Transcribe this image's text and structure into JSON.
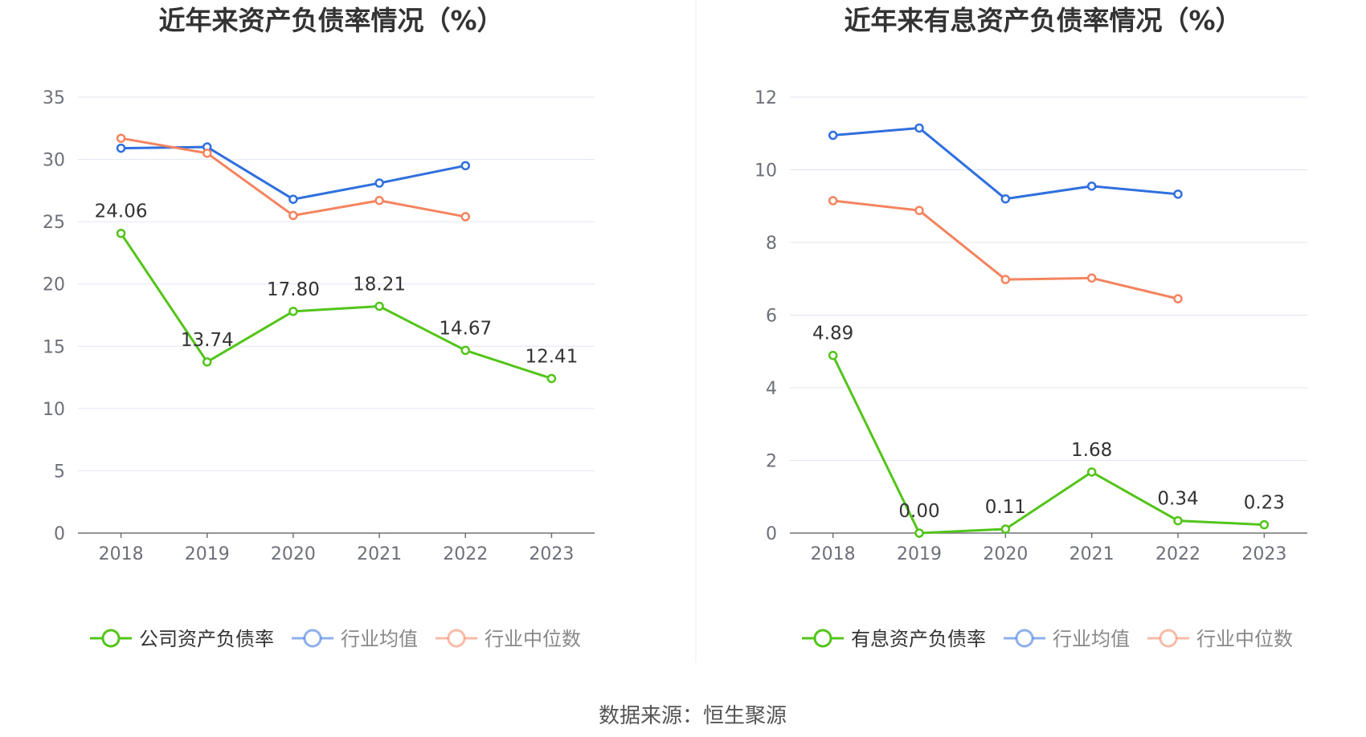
{
  "source_note": "数据来源：恒生聚源",
  "chart_data": [
    {
      "type": "line",
      "title": "近年来资产负债率情况（%）",
      "xlabel": "",
      "ylabel": "",
      "categories": [
        "2018",
        "2019",
        "2020",
        "2021",
        "2022",
        "2023"
      ],
      "ylim": [
        0,
        35
      ],
      "yticks": [
        0,
        5,
        10,
        15,
        20,
        25,
        30,
        35
      ],
      "grid": true,
      "legend_position": "bottom",
      "series": [
        {
          "name": "公司资产负债率",
          "color": "#52c41a",
          "values": [
            24.06,
            13.74,
            17.8,
            18.21,
            14.67,
            12.41
          ],
          "labels": [
            "24.06",
            "13.74",
            "17.80",
            "18.21",
            "14.67",
            "12.41"
          ],
          "show_labels": true
        },
        {
          "name": "行业均值",
          "color": "#2f6fde",
          "values": [
            30.9,
            31.0,
            26.8,
            28.1,
            29.5,
            null
          ],
          "show_labels": false
        },
        {
          "name": "行业中位数",
          "color": "#f4845f",
          "values": [
            31.7,
            30.5,
            25.5,
            26.7,
            25.4,
            null
          ],
          "show_labels": false
        }
      ]
    },
    {
      "type": "line",
      "title": "近年来有息资产负债率情况（%）",
      "xlabel": "",
      "ylabel": "",
      "categories": [
        "2018",
        "2019",
        "2020",
        "2021",
        "2022",
        "2023"
      ],
      "ylim": [
        0,
        12
      ],
      "yticks": [
        0,
        2,
        4,
        6,
        8,
        10,
        12
      ],
      "grid": true,
      "legend_position": "bottom",
      "series": [
        {
          "name": "有息资产负债率",
          "color": "#52c41a",
          "values": [
            4.89,
            0.0,
            0.11,
            1.68,
            0.34,
            0.23
          ],
          "labels": [
            "4.89",
            "0.00",
            "0.11",
            "1.68",
            "0.34",
            "0.23"
          ],
          "show_labels": true
        },
        {
          "name": "行业均值",
          "color": "#2f6fde",
          "values": [
            10.95,
            11.15,
            9.2,
            9.55,
            9.33,
            null
          ],
          "show_labels": false
        },
        {
          "name": "行业中位数",
          "color": "#f4845f",
          "values": [
            9.15,
            8.88,
            6.98,
            7.02,
            6.45,
            null
          ],
          "show_labels": false
        }
      ]
    }
  ]
}
